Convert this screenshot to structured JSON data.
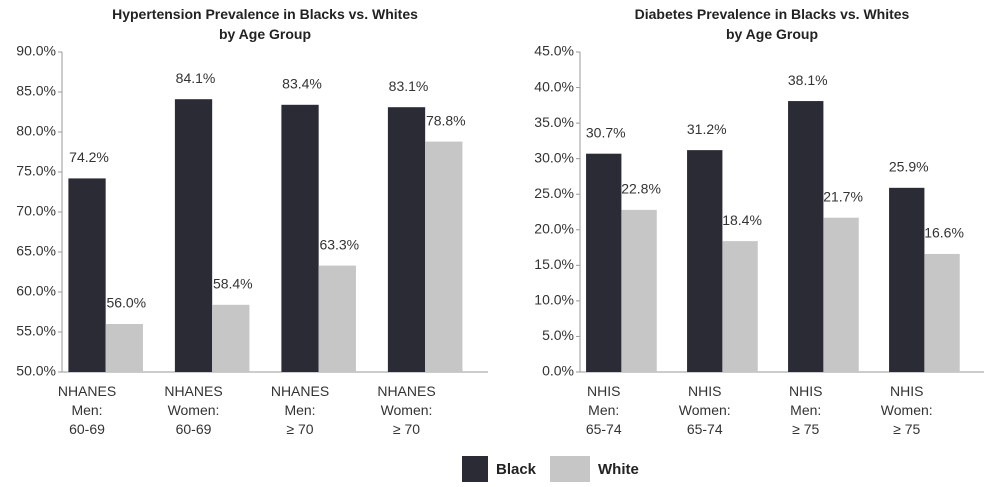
{
  "chart_data": [
    {
      "type": "bar",
      "title": "Hypertension Prevalence in Blacks vs. Whites\nby Age Group",
      "categories": [
        "NHANES\nMen:\n60-69",
        "NHANES\nWomen:\n60-69",
        "NHANES\nMen:\n≥ 70",
        "NHANES\nWomen:\n≥ 70"
      ],
      "series": [
        {
          "name": "Black",
          "color": "#2b2b36",
          "values": [
            74.2,
            84.1,
            83.4,
            83.1
          ],
          "value_labels": [
            "74.2%",
            "84.1%",
            "83.4%",
            "83.1%"
          ]
        },
        {
          "name": "White",
          "color": "#c6c6c6",
          "values": [
            56.0,
            58.4,
            63.3,
            78.8
          ],
          "value_labels": [
            "56.0%",
            "58.4%",
            "63.3%",
            "78.8%"
          ]
        }
      ],
      "ylim": [
        50,
        90
      ],
      "yticks": [
        {
          "value": 50,
          "label": "50.0%"
        },
        {
          "value": 55,
          "label": "55.0%"
        },
        {
          "value": 60,
          "label": "60.0%"
        },
        {
          "value": 65,
          "label": "65.0%"
        },
        {
          "value": 70,
          "label": "70.0%"
        },
        {
          "value": 75,
          "label": "75.0%"
        },
        {
          "value": 80,
          "label": "80.0%"
        },
        {
          "value": 85,
          "label": "85.0%"
        },
        {
          "value": 90,
          "label": "90.0%"
        }
      ]
    },
    {
      "type": "bar",
      "title": "Diabetes Prevalence in Blacks vs. Whites\nby Age Group",
      "categories": [
        "NHIS\nMen:\n65-74",
        "NHIS\nWomen:\n65-74",
        "NHIS\nMen:\n≥ 75",
        "NHIS\nWomen:\n≥ 75"
      ],
      "series": [
        {
          "name": "Black",
          "color": "#2b2b36",
          "values": [
            30.7,
            31.2,
            38.1,
            25.9
          ],
          "value_labels": [
            "30.7%",
            "31.2%",
            "38.1%",
            "25.9%"
          ]
        },
        {
          "name": "White",
          "color": "#c6c6c6",
          "values": [
            22.8,
            18.4,
            21.7,
            16.6
          ],
          "value_labels": [
            "22.8%",
            "18.4%",
            "21.7%",
            "16.6%"
          ]
        }
      ],
      "ylim": [
        0,
        45
      ],
      "yticks": [
        {
          "value": 0,
          "label": "0.0%"
        },
        {
          "value": 5,
          "label": "5.0%"
        },
        {
          "value": 10,
          "label": "10.0%"
        },
        {
          "value": 15,
          "label": "15.0%"
        },
        {
          "value": 20,
          "label": "20.0%"
        },
        {
          "value": 25,
          "label": "25.0%"
        },
        {
          "value": 30,
          "label": "30.0%"
        },
        {
          "value": 35,
          "label": "35.0%"
        },
        {
          "value": 40,
          "label": "40.0%"
        },
        {
          "value": 45,
          "label": "45.0%"
        }
      ]
    }
  ]
}
